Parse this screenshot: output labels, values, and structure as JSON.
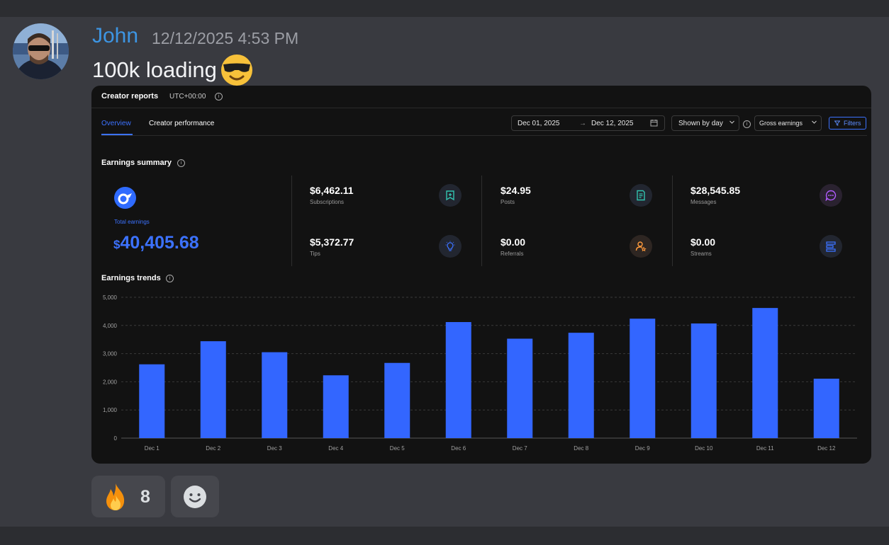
{
  "message": {
    "username": "John",
    "timestamp": "12/12/2025 4:53 PM",
    "text": "100k loading",
    "emoji": "sunglasses-emoji"
  },
  "report": {
    "title": "Creator reports",
    "timezone": "UTC+00:00",
    "tabs": [
      {
        "label": "Overview"
      },
      {
        "label": "Creator performance"
      }
    ],
    "date_from": "Dec 01, 2025",
    "date_arrow": "→",
    "date_to": "Dec 12, 2025",
    "shown_by": "Shown by day",
    "earnings_type": "Gross earnings",
    "filters_label": "Filters",
    "summary_title": "Earnings summary",
    "total_label": "Total earnings",
    "total_currency": "$",
    "total_value": "40,405.68",
    "stats": [
      {
        "value": "$6,462.11",
        "label": "Subscriptions",
        "icon": "subscriptions-icon",
        "color": "#32c3b0"
      },
      {
        "value": "$24.95",
        "label": "Posts",
        "icon": "posts-icon",
        "color": "#32c3b0"
      },
      {
        "value": "$28,545.85",
        "label": "Messages",
        "icon": "messages-icon",
        "color": "#b15cff"
      },
      {
        "value": "$5,372.77",
        "label": "Tips",
        "icon": "tips-icon",
        "color": "#3c72ff"
      },
      {
        "value": "$0.00",
        "label": "Referrals",
        "icon": "referrals-icon",
        "color": "#ff9a3c"
      },
      {
        "value": "$0.00",
        "label": "Streams",
        "icon": "streams-icon",
        "color": "#3c72ff"
      }
    ],
    "trends_title": "Earnings trends"
  },
  "chart_data": {
    "type": "bar",
    "title": "Earnings trends",
    "categories": [
      "Dec 1",
      "Dec 2",
      "Dec 3",
      "Dec 4",
      "Dec 5",
      "Dec 6",
      "Dec 7",
      "Dec 8",
      "Dec 9",
      "Dec 10",
      "Dec 11",
      "Dec 12"
    ],
    "values": [
      2620,
      3440,
      3050,
      2230,
      2670,
      4120,
      3530,
      3740,
      4240,
      4070,
      4620,
      2110
    ],
    "yticks": [
      "0",
      "1,000",
      "2,000",
      "3,000",
      "4,000",
      "5,000"
    ],
    "ylim": [
      0,
      5000
    ],
    "bar_color": "#3366ff",
    "grid": true
  },
  "reactions": [
    {
      "emoji": "fire-emoji",
      "count": "8"
    },
    {
      "emoji": "add-reaction-icon"
    }
  ],
  "colors": {
    "accent": "#3c72ff",
    "username": "#3d95e3"
  }
}
